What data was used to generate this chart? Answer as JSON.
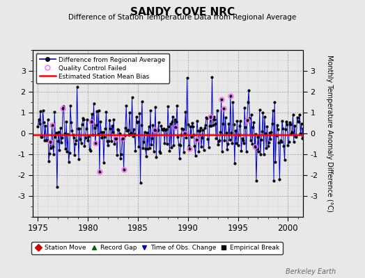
{
  "title": "SANDY COVE NRC",
  "subtitle": "Difference of Station Temperature Data from Regional Average",
  "ylabel": "Monthly Temperature Anomaly Difference (°C)",
  "xlabel_years": [
    1975,
    1980,
    1985,
    1990,
    1995,
    2000
  ],
  "ylim": [
    -4,
    4
  ],
  "yticks": [
    -3,
    -2,
    -1,
    0,
    1,
    2,
    3
  ],
  "bias_value": -0.05,
  "line_color": "#0000cc",
  "marker_color": "#000000",
  "bias_color": "#ff0000",
  "qc_color": "#ff66ff",
  "background_color": "#e8e8e8",
  "plot_bg_color": "#e8e8e8",
  "watermark": "Berkeley Earth",
  "legend1_labels": [
    "Difference from Regional Average",
    "Quality Control Failed",
    "Estimated Station Mean Bias"
  ],
  "legend2_labels": [
    "Station Move",
    "Record Gap",
    "Time of Obs. Change",
    "Empirical Break"
  ],
  "seed": 42,
  "xmin": 1975,
  "xmax": 2001.5
}
